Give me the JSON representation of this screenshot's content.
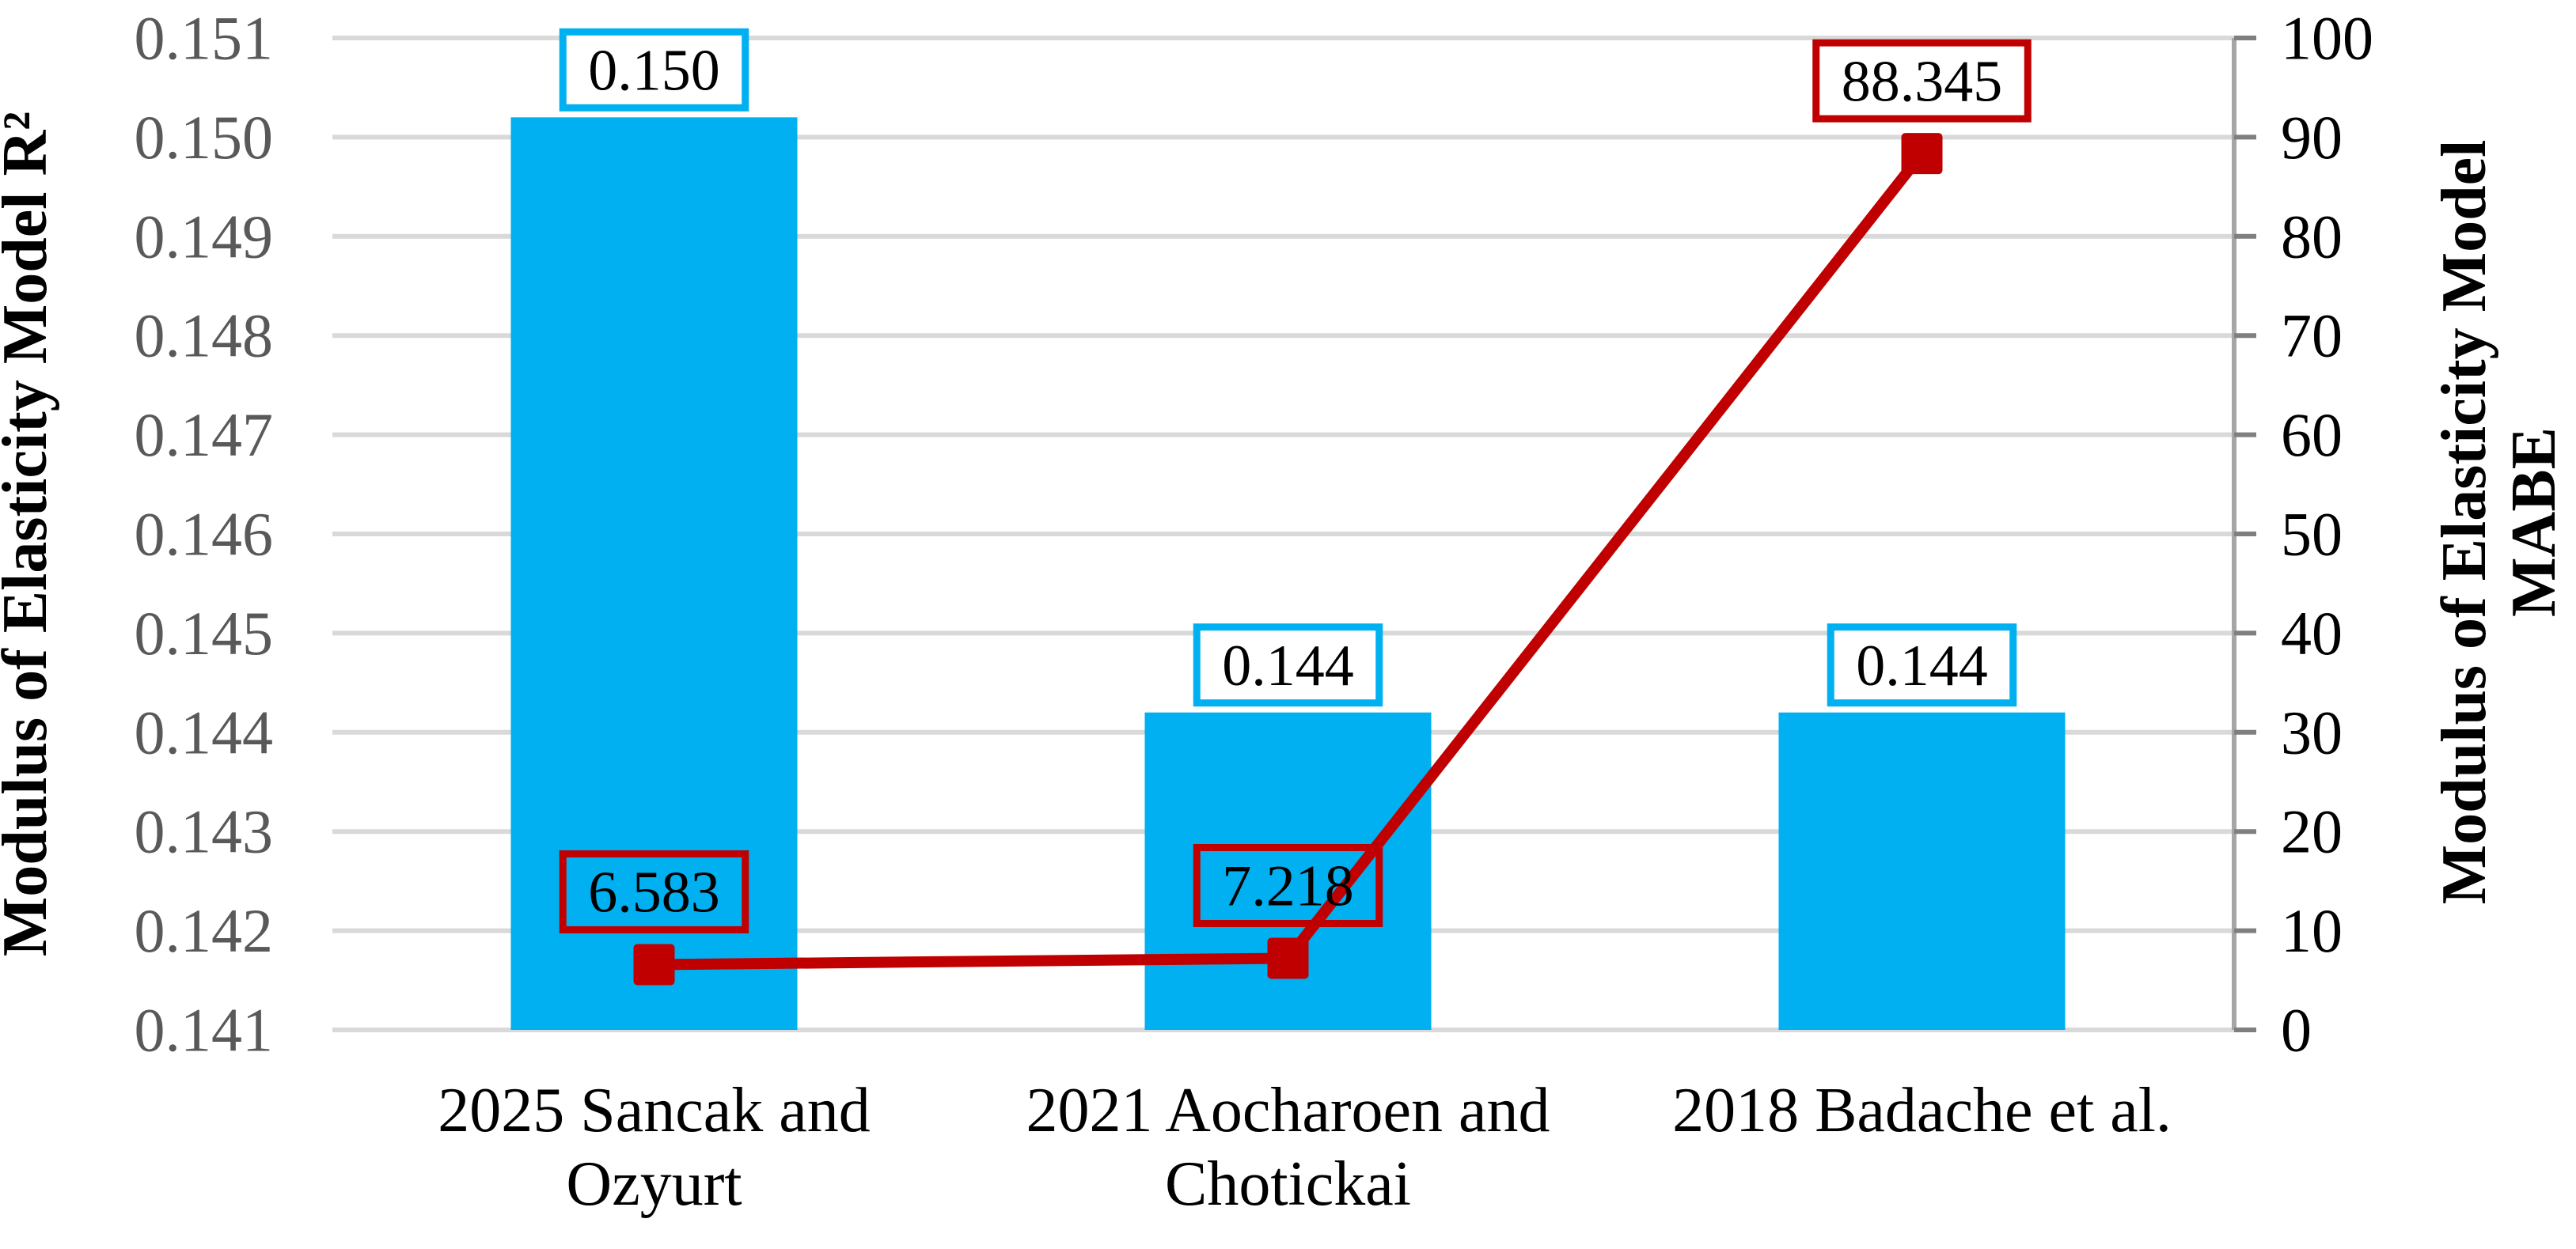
{
  "chart_data": {
    "type": "bar",
    "subtype": "bar-line-combo-dual-axis",
    "title": "",
    "categories": [
      "2025 Sancak and Ozyurt",
      "2021 Aocharoen and Chotickai",
      "2018 Badache et al."
    ],
    "category_label_lines": [
      [
        "2025 Sancak and",
        "Ozyurt"
      ],
      [
        "2021 Aocharoen and",
        "Chotickai"
      ],
      [
        "2018 Badache et al."
      ]
    ],
    "series": [
      {
        "name": "Modulus of Elasticity Model R2 (bars)",
        "type": "bar",
        "axis": "left",
        "color": "#00B0F0",
        "values": [
          0.1502,
          0.1442,
          0.1442
        ],
        "data_labels": [
          "0.150",
          "0.144",
          "0.144"
        ],
        "label_box_border_color": "#00B0F0",
        "label_box_fill": "#FFFFFF"
      },
      {
        "name": "Modulus of Elasticity Model MABE (line)",
        "type": "line",
        "axis": "right",
        "color": "#C00000",
        "marker": "square",
        "values": [
          6.583,
          7.218,
          88.345
        ],
        "data_labels": [
          "6.583",
          "7.218",
          "88.345"
        ],
        "label_box_border_color": "#C00000",
        "label_box_fill": "none"
      }
    ],
    "left_axis": {
      "title": "Modulus of Elasticity Model R²",
      "min": 0.141,
      "max": 0.151,
      "step": 0.001,
      "tick_labels": [
        "0.151",
        "0.150",
        "0.149",
        "0.148",
        "0.147",
        "0.146",
        "0.145",
        "0.144",
        "0.143",
        "0.142",
        "0.141"
      ],
      "tick_label_color": "#595959"
    },
    "right_axis": {
      "title": "Modulus of Elasticity Model MABE",
      "title_lines": [
        "Modulus of Elasticity Model",
        "MABE"
      ],
      "min": 0,
      "max": 100,
      "step": 10,
      "tick_labels": [
        "100",
        "90",
        "80",
        "70",
        "60",
        "50",
        "40",
        "30",
        "20",
        "10",
        "0"
      ],
      "tick_label_color": "#000000"
    },
    "grid": true,
    "legend_position": "none",
    "style": {
      "background": "#FFFFFF",
      "gridline_color": "#D9D9D9",
      "right_axis_line_color": "#A6A6A6",
      "right_axis_tick_color": "#7F7F7F",
      "category_label_color": "#000000",
      "data_label_color": "#000000",
      "axis_title_color": "#000000"
    }
  }
}
